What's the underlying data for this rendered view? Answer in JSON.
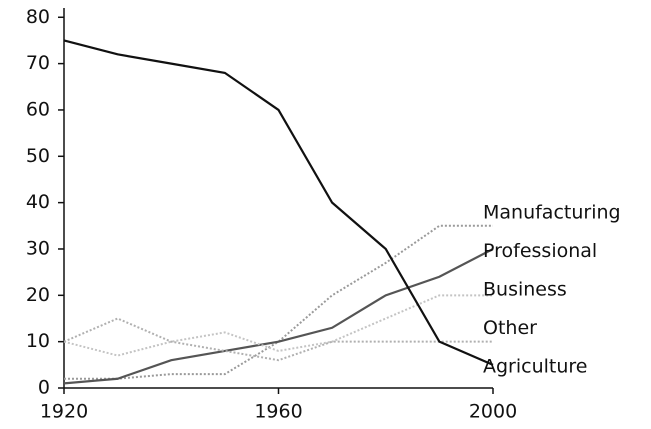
{
  "chart_data": {
    "type": "line",
    "x": [
      1920,
      1930,
      1940,
      1950,
      1960,
      1970,
      1980,
      1990,
      2000
    ],
    "series": [
      {
        "name": "Manufacturing",
        "color": "#9a9a9a",
        "style": "dotted",
        "values": [
          2,
          2,
          3,
          3,
          10,
          20,
          27,
          35,
          35
        ]
      },
      {
        "name": "Professional",
        "color": "#555555",
        "style": "solid",
        "values": [
          1,
          2,
          6,
          8,
          10,
          13,
          20,
          24,
          30
        ]
      },
      {
        "name": "Business",
        "color": "#c4c4c4",
        "style": "dotted",
        "values": [
          10,
          7,
          10,
          12,
          8,
          10,
          15,
          20,
          20
        ]
      },
      {
        "name": "Other",
        "color": "#b0b0b0",
        "style": "dotted",
        "values": [
          10,
          15,
          10,
          8,
          6,
          10,
          10,
          10,
          10
        ]
      },
      {
        "name": "Agriculture",
        "color": "#111111",
        "style": "solid",
        "values": [
          75,
          72,
          70,
          68,
          60,
          40,
          30,
          10,
          5
        ]
      }
    ],
    "xlim": [
      1920,
      2000
    ],
    "xticks": [
      1920,
      1960,
      2000
    ],
    "ylim": [
      0,
      82
    ],
    "yticks": [
      0,
      10,
      20,
      30,
      40,
      50,
      60,
      70,
      80
    ],
    "legend": "right"
  }
}
